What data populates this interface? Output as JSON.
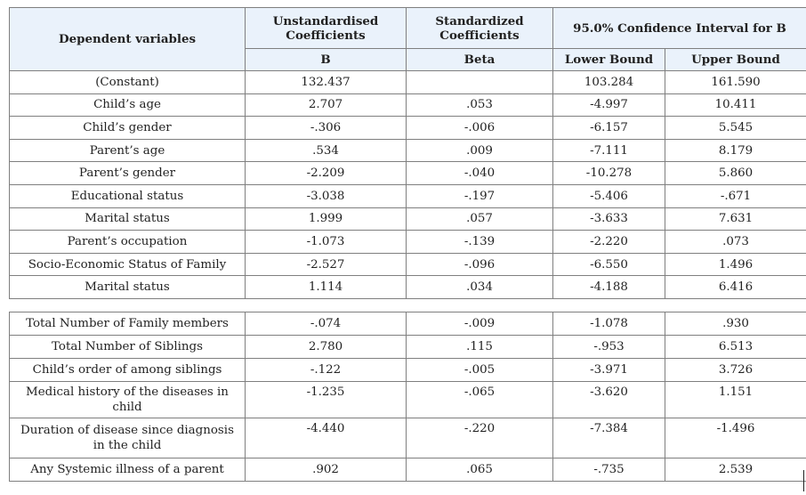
{
  "header": {
    "dependent_variables": "Dependent variables",
    "unstd_coeff_line1": "Unstandardised",
    "unstd_coeff_line2": "Coefficients",
    "std_coeff_line1": "Standardized",
    "std_coeff_line2": "Coefficients",
    "ci_title": "95.0% Confidence Interval for B",
    "col_b": "B",
    "col_beta": "Beta",
    "col_lower": "Lower Bound",
    "col_upper": "Upper Bound"
  },
  "table1_rows": [
    {
      "variable": "(Constant)",
      "b": "132.437",
      "beta": "",
      "lower": "103.284",
      "upper": "161.590"
    },
    {
      "variable": "Child’s age",
      "b": "2.707",
      "beta": ".053",
      "lower": "-4.997",
      "upper": "10.411"
    },
    {
      "variable": "Child’s gender",
      "b": "-.306",
      "beta": "-.006",
      "lower": "-6.157",
      "upper": "5.545"
    },
    {
      "variable": "Parent’s age",
      "b": ".534",
      "beta": ".009",
      "lower": "-7.111",
      "upper": "8.179"
    },
    {
      "variable": "Parent’s gender",
      "b": "-2.209",
      "beta": "-.040",
      "lower": "-10.278",
      "upper": "5.860"
    },
    {
      "variable": "Educational status",
      "b": "-3.038",
      "beta": "-.197",
      "lower": "-5.406",
      "upper": "-.671"
    },
    {
      "variable": "Marital status",
      "b": "1.999",
      "beta": ".057",
      "lower": "-3.633",
      "upper": "7.631"
    },
    {
      "variable": "Parent’s occupation",
      "b": "-1.073",
      "beta": "-.139",
      "lower": "-2.220",
      "upper": ".073"
    },
    {
      "variable": "Socio-Economic Status of Family",
      "b": "-2.527",
      "beta": "-.096",
      "lower": "-6.550",
      "upper": "1.496"
    },
    {
      "variable": "Marital status",
      "b": "1.114",
      "beta": ".034",
      "lower": "-4.188",
      "upper": "6.416"
    }
  ],
  "table2_rows": [
    {
      "variable": "Total Number of Family members",
      "b": "-.074",
      "beta": "-.009",
      "lower": "-1.078",
      "upper": ".930"
    },
    {
      "variable": "Total Number of Siblings",
      "b": "2.780",
      "beta": ".115",
      "lower": "-.953",
      "upper": "6.513"
    },
    {
      "variable": "Child’s order of among siblings",
      "b": "-.122",
      "beta": "-.005",
      "lower": "-3.971",
      "upper": "3.726"
    },
    {
      "variable": "Medical history of the diseases in child",
      "b": "-1.235",
      "beta": "-.065",
      "lower": "-3.620",
      "upper": "1.151"
    },
    {
      "variable": "Duration of disease since diagnosis in the child",
      "b": "-4.440",
      "beta": "-.220",
      "lower": "-7.384",
      "upper": "-1.496"
    },
    {
      "variable": "Any Systemic illness of a parent",
      "b": ".902",
      "beta": ".065",
      "lower": "-.735",
      "upper": "2.539"
    }
  ]
}
